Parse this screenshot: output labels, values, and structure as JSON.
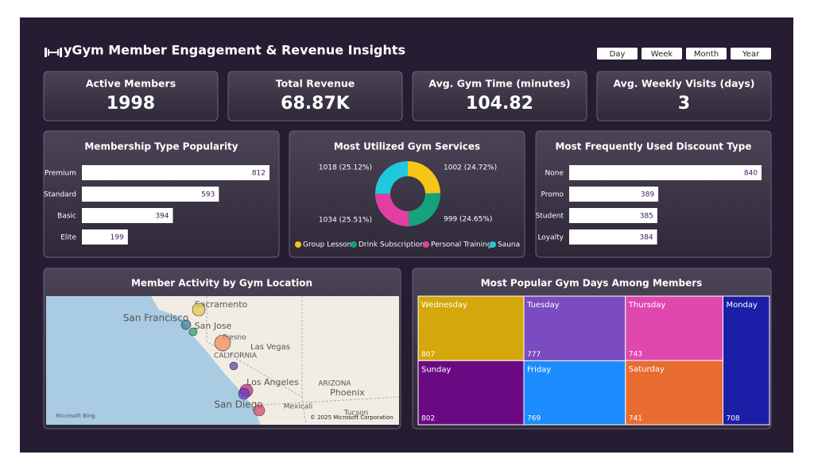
{
  "header": {
    "title": "yGym Member Engagement & Revenue Insights",
    "buttons": [
      "Day",
      "Week",
      "Month",
      "Year"
    ]
  },
  "kpis": [
    {
      "label": "Active Members",
      "value": 1998
    },
    {
      "label": "Total Revenue",
      "value": "68.87K"
    },
    {
      "label": "Avg. Gym Time (minutes)",
      "value": 104.82
    },
    {
      "label": "Avg. Weekly Visits (days)",
      "value": 3
    }
  ],
  "chart_data": [
    {
      "type": "bar",
      "title": "Membership Type Popularity",
      "categories": [
        "Premium",
        "Standard",
        "Basic",
        "Elite"
      ],
      "values": [
        812,
        593,
        394,
        199
      ],
      "color": "#ffffff"
    },
    {
      "type": "pie",
      "title": "Most Utilized Gym Services",
      "categories": [
        "Group Lesson",
        "Drink Subscription",
        "Personal Training",
        "Sauna"
      ],
      "values": [
        1002,
        999,
        1034,
        1018
      ],
      "value_labels": [
        "1002 (24.72%)",
        "999 (24.65%)",
        "1034 (25.51%)",
        "1018 (25.12%)"
      ],
      "colors": [
        "#f5c518",
        "#14a37a",
        "#e23fa3",
        "#1fc8dc"
      ],
      "legend": "bottom"
    },
    {
      "type": "bar",
      "title": "Most Frequently Used Discount Type",
      "categories": [
        "None",
        "Promo",
        "Student",
        "Loyalty"
      ],
      "values": [
        840,
        389,
        385,
        384
      ],
      "color": "#ffffff"
    },
    {
      "type": "treemap",
      "title": "Most Popular Gym Days Among Members",
      "categories": [
        "Wednesday",
        "Sunday",
        "Tuesday",
        "Friday",
        "Thursday",
        "Saturday",
        "Monday"
      ],
      "values": [
        807,
        802,
        777,
        769,
        743,
        741,
        708
      ],
      "colors": [
        "#d4a80c",
        "#6a0a82",
        "#7a4cc0",
        "#1a8cff",
        "#e048b0",
        "#e86c30",
        "#1b1fa8"
      ]
    }
  ],
  "map": {
    "title": "Member Activity by Gym Location",
    "labels": [
      "Sacramento",
      "San Francisco",
      "San Jose",
      "Fresno",
      "Las Vegas",
      "CALIFORNIA",
      "Los Angeles",
      "ARIZONA",
      "Phoenix",
      "San Diego",
      "Mexicali",
      "Tucson"
    ],
    "attribution": [
      "Microsoft Bing",
      "© 2025 Microsoft Corporation"
    ]
  }
}
